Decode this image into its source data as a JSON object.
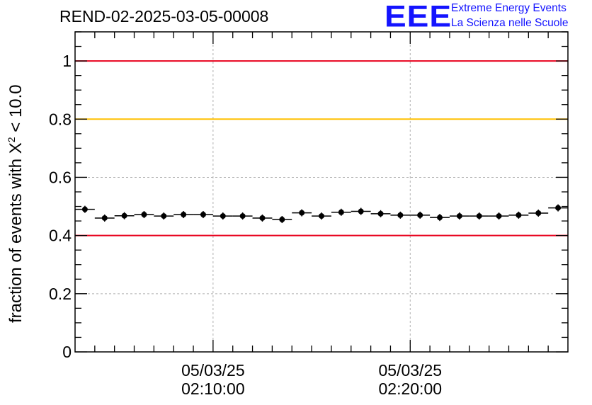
{
  "title": "REND-02-2025-03-05-00008",
  "logo": {
    "mark": "EEE",
    "line1": "Extreme Energy Events",
    "line2": "La Scienza nelle Scuole"
  },
  "chart_data": {
    "type": "scatter",
    "title": "REND-02-2025-03-05-00008",
    "ylabel": "fraction of events with χ² < 10.0",
    "ylabel_parts": {
      "prefix": "fraction of events with X",
      "sup": "2",
      "suffix": " < 10.0"
    },
    "ylim": [
      0,
      1.1
    ],
    "yticks": [
      0,
      0.2,
      0.4,
      0.6,
      0.8,
      1
    ],
    "ytick_labels": [
      "0",
      "0.2",
      "0.4",
      "0.6",
      "0.8",
      "1"
    ],
    "xlim": [
      "02:03:00",
      "02:28:00"
    ],
    "xticks": [
      {
        "time": "02:10:00",
        "label_date": "05/03/25",
        "label_time": "02:10:00"
      },
      {
        "time": "02:20:00",
        "label_date": "05/03/25",
        "label_time": "02:20:00"
      }
    ],
    "grid": true,
    "reference_lines": [
      {
        "y": 1.0,
        "color": "#e8001c"
      },
      {
        "y": 0.8,
        "color": "#ffc000"
      },
      {
        "y": 0.4,
        "color": "#e8001c"
      }
    ],
    "bin_width_seconds": 60,
    "x": [
      "02:03:30",
      "02:04:30",
      "02:05:30",
      "02:06:30",
      "02:07:30",
      "02:08:30",
      "02:09:30",
      "02:10:30",
      "02:11:30",
      "02:12:30",
      "02:13:30",
      "02:14:30",
      "02:15:30",
      "02:16:30",
      "02:17:30",
      "02:18:30",
      "02:19:30",
      "02:20:30",
      "02:21:30",
      "02:22:30",
      "02:23:30",
      "02:24:30",
      "02:25:30",
      "02:26:30",
      "02:27:30"
    ],
    "values": [
      0.49,
      0.46,
      0.468,
      0.472,
      0.467,
      0.472,
      0.472,
      0.467,
      0.467,
      0.46,
      0.455,
      0.478,
      0.467,
      0.48,
      0.483,
      0.475,
      0.47,
      0.47,
      0.462,
      0.467,
      0.467,
      0.467,
      0.47,
      0.477,
      0.495
    ],
    "marker_color": "#000000"
  }
}
